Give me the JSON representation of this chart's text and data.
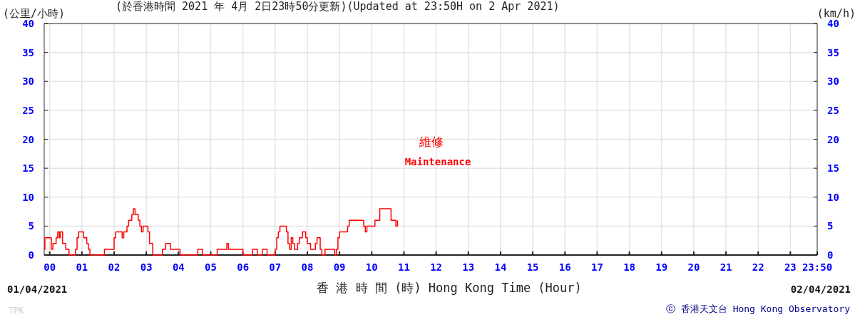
{
  "chart_data": {
    "type": "step",
    "title": "(於香港時間 2021 年 4月 2日23時50分更新)(Updated at 23:50H on 2 Apr 2021)",
    "ylabel": "(公里/小時)",
    "y2label": "(km/h)",
    "xlabel": "香 港 時 間 (時) Hong Kong Time (Hour)",
    "annotations": [
      "01/04/2021",
      "02/04/2021",
      "維修",
      "Maintenance",
      "TPK",
      "ⓒ 香港天文台 Hong Kong Observatory"
    ],
    "series": [
      {
        "color": "#ff0000",
        "x": [
          -0.17,
          -0.15,
          0.0,
          0.05,
          0.1,
          0.2,
          0.25,
          0.3,
          0.33,
          0.4,
          0.5,
          0.6,
          0.75,
          0.8,
          0.85,
          0.9,
          1.0,
          1.05,
          1.15,
          1.2,
          1.25,
          1.7,
          1.95,
          2.0,
          2.05,
          2.2,
          2.25,
          2.3,
          2.4,
          2.45,
          2.55,
          2.6,
          2.65,
          2.75,
          2.8,
          2.85,
          2.9,
          3.0,
          3.05,
          3.1,
          3.2,
          3.5,
          3.6,
          3.7,
          3.75,
          4.05,
          4.6,
          4.75,
          5.2,
          5.5,
          5.55,
          5.8,
          6.0,
          6.3,
          6.45,
          6.6,
          6.75,
          7.0,
          7.05,
          7.1,
          7.15,
          7.3,
          7.35,
          7.4,
          7.45,
          7.5,
          7.55,
          7.6,
          7.7,
          7.75,
          7.85,
          7.95,
          8.0,
          8.1,
          8.25,
          8.3,
          8.4,
          8.45,
          8.55,
          8.85,
          8.9,
          8.95,
          9.0,
          9.25,
          9.3,
          9.7,
          9.75,
          9.8,
          9.85,
          10.1,
          10.25,
          10.55,
          10.6,
          10.7,
          10.75,
          10.8
        ],
        "values": [
          1,
          3,
          3,
          1,
          2,
          3,
          4,
          3,
          4,
          2,
          1,
          0,
          0,
          1,
          3,
          4,
          4,
          3,
          2,
          1,
          0,
          1,
          1,
          3,
          4,
          4,
          3,
          4,
          5,
          6,
          7,
          8,
          7,
          6,
          5,
          4,
          5,
          5,
          4,
          2,
          0,
          1,
          2,
          2,
          1,
          0,
          1,
          0,
          1,
          2,
          1,
          1,
          0,
          1,
          0,
          1,
          0,
          1,
          3,
          4,
          5,
          5,
          4,
          2,
          1,
          3,
          2,
          1,
          2,
          3,
          4,
          3,
          2,
          1,
          2,
          3,
          1,
          0,
          1,
          0,
          1,
          3,
          4,
          5,
          6,
          6,
          5,
          4,
          5,
          6,
          8,
          8,
          6,
          6,
          5,
          6
        ]
      }
    ],
    "xlim": [
      -0.17,
      23.833
    ],
    "xticks": [
      {
        "value": 0,
        "label": "00"
      },
      {
        "value": 1,
        "label": "01"
      },
      {
        "value": 2,
        "label": "02"
      },
      {
        "value": 3,
        "label": "03"
      },
      {
        "value": 4,
        "label": "04"
      },
      {
        "value": 5,
        "label": "05"
      },
      {
        "value": 6,
        "label": "06"
      },
      {
        "value": 7,
        "label": "07"
      },
      {
        "value": 8,
        "label": "08"
      },
      {
        "value": 9,
        "label": "09"
      },
      10,
      11,
      12,
      13,
      14,
      15,
      16,
      17,
      18,
      19,
      20,
      21,
      22,
      23,
      {
        "value": 23.833,
        "label": "23:50"
      }
    ],
    "ylim": [
      0,
      40
    ],
    "yticks": [
      0,
      5,
      10,
      15,
      20,
      25,
      30,
      35,
      40
    ],
    "y2lim": [
      0,
      40
    ],
    "y2ticks": [
      0,
      5,
      10,
      15,
      20,
      25,
      30,
      35,
      40
    ],
    "grid": true,
    "marker": "none"
  }
}
